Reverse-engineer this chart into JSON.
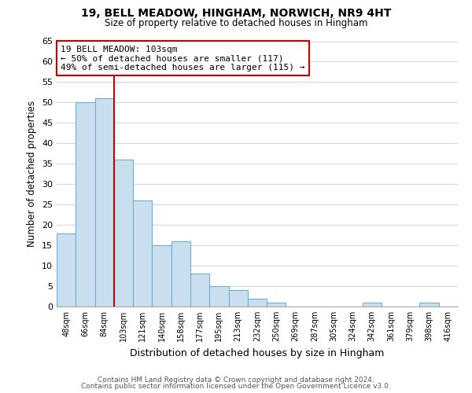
{
  "title": "19, BELL MEADOW, HINGHAM, NORWICH, NR9 4HT",
  "subtitle": "Size of property relative to detached houses in Hingham",
  "xlabel": "Distribution of detached houses by size in Hingham",
  "ylabel": "Number of detached properties",
  "bar_labels": [
    "48sqm",
    "66sqm",
    "84sqm",
    "103sqm",
    "121sqm",
    "140sqm",
    "158sqm",
    "177sqm",
    "195sqm",
    "213sqm",
    "232sqm",
    "250sqm",
    "269sqm",
    "287sqm",
    "305sqm",
    "324sqm",
    "342sqm",
    "361sqm",
    "379sqm",
    "398sqm",
    "416sqm"
  ],
  "bar_heights": [
    18,
    50,
    51,
    36,
    26,
    15,
    16,
    8,
    5,
    4,
    2,
    1,
    0,
    0,
    0,
    0,
    1,
    0,
    0,
    1,
    0
  ],
  "bar_color": "#c9dff0",
  "bar_edge_color": "#6baed6",
  "vline_color": "#cc0000",
  "annotation_text": "19 BELL MEADOW: 103sqm\n← 50% of detached houses are smaller (117)\n49% of semi-detached houses are larger (115) →",
  "annotation_box_color": "#ffffff",
  "annotation_box_edge": "#cc0000",
  "ylim": [
    0,
    65
  ],
  "yticks": [
    0,
    5,
    10,
    15,
    20,
    25,
    30,
    35,
    40,
    45,
    50,
    55,
    60,
    65
  ],
  "footer_line1": "Contains HM Land Registry data © Crown copyright and database right 2024.",
  "footer_line2": "Contains public sector information licensed under the Open Government Licence v3.0.",
  "background_color": "#ffffff",
  "grid_color": "#d0d8e0"
}
